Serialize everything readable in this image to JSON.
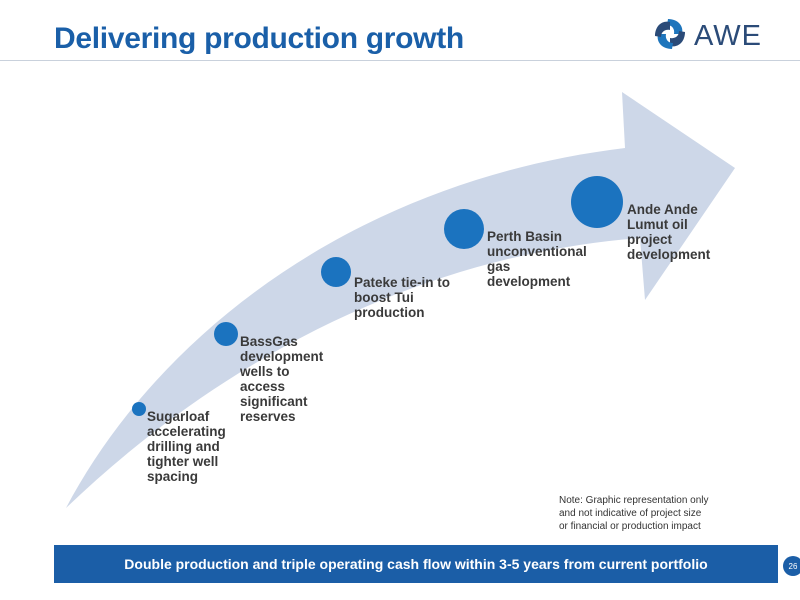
{
  "header": {
    "title": "Delivering production growth",
    "logo_text": "AWE",
    "logo_icon": "awe-swirl-logo"
  },
  "milestones": [
    {
      "id": "sugarloaf",
      "lines": [
        "Sugarloaf",
        "accelerating",
        "drilling and",
        "tighter well",
        "spacing"
      ]
    },
    {
      "id": "bassgas",
      "lines": [
        "BassGas",
        "development",
        "wells to",
        "access",
        "significant",
        "reserves"
      ]
    },
    {
      "id": "pateke",
      "lines": [
        "Pateke tie-in to",
        "boost Tui",
        "production"
      ]
    },
    {
      "id": "perth",
      "lines": [
        "Perth Basin",
        "unconventional",
        "gas",
        "development"
      ]
    },
    {
      "id": "ande",
      "lines": [
        "Ande Ande",
        "Lumut oil",
        "project",
        "development"
      ]
    }
  ],
  "note": {
    "lines": [
      "Note: Graphic representation only",
      "and not indicative of project size",
      "or financial or production impact"
    ]
  },
  "banner": {
    "text": "Double production and triple operating cash flow within 3-5 years from current portfolio"
  },
  "footer": {
    "page_number": "26"
  },
  "colors": {
    "title": "#1a5fa8",
    "arrow": "#cdd7e8",
    "milestone_dot": "#1b73bf",
    "banner": "#1b5ea7",
    "label_text": "#3a3a3a"
  }
}
